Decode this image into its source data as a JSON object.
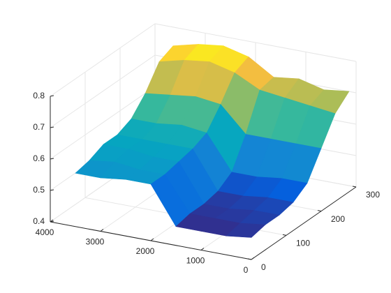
{
  "chart_data": {
    "type": "surface",
    "x": [
      0,
      500,
      1000,
      1500,
      2000,
      2500,
      3000,
      3500
    ],
    "y": [
      0,
      40,
      80,
      120,
      160,
      200,
      240,
      280
    ],
    "z": [
      [
        0.47,
        0.46,
        0.46,
        0.46,
        0.58,
        0.58,
        0.57,
        0.57
      ],
      [
        0.48,
        0.47,
        0.47,
        0.47,
        0.58,
        0.58,
        0.59,
        0.58
      ],
      [
        0.48,
        0.48,
        0.47,
        0.47,
        0.59,
        0.59,
        0.6,
        0.6
      ],
      [
        0.49,
        0.49,
        0.48,
        0.48,
        0.6,
        0.6,
        0.6,
        0.6
      ],
      [
        0.52,
        0.52,
        0.51,
        0.51,
        0.62,
        0.63,
        0.62,
        0.62
      ],
      [
        0.6,
        0.6,
        0.6,
        0.6,
        0.68,
        0.69,
        0.68,
        0.67
      ],
      [
        0.68,
        0.69,
        0.7,
        0.71,
        0.75,
        0.77,
        0.76,
        0.74
      ],
      [
        0.72,
        0.71,
        0.73,
        0.72,
        0.77,
        0.79,
        0.78,
        0.76
      ]
    ],
    "xlim": [
      0,
      4000
    ],
    "ylim": [
      0,
      300
    ],
    "zlim": [
      0.4,
      0.8
    ],
    "xticks": [
      0,
      1000,
      2000,
      3000,
      4000
    ],
    "yticks": [
      0,
      100,
      200,
      300
    ],
    "zticks": [
      0.4,
      0.5,
      0.6,
      0.7,
      0.8
    ],
    "grid": true,
    "colormap": "parula"
  }
}
